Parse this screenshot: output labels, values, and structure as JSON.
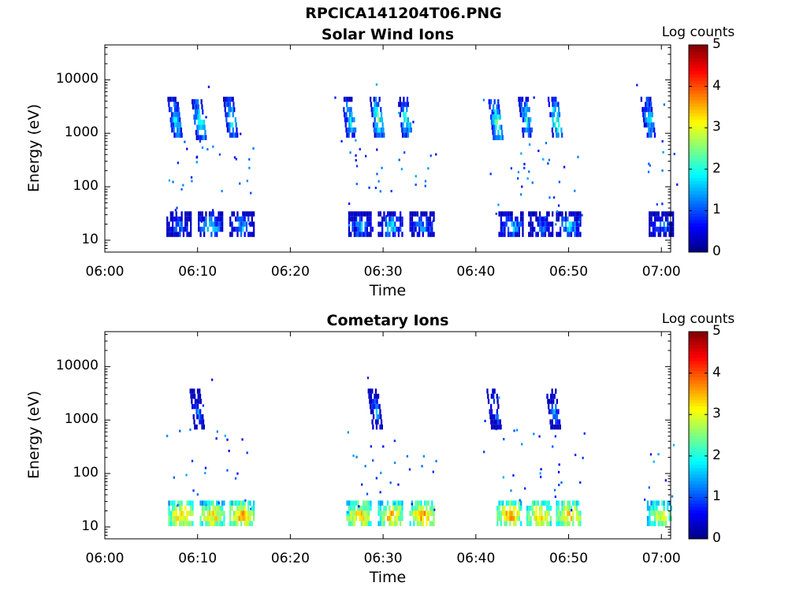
{
  "page": {
    "title": "RPCICA141204T06.PNG"
  },
  "chart_data": [
    {
      "type": "heatmap",
      "title": "Solar Wind Ions",
      "xlabel": "Time",
      "ylabel": "Energy (eV)",
      "x_ticks": [
        "06:00",
        "06:10",
        "06:20",
        "06:30",
        "06:40",
        "06:50",
        "07:00"
      ],
      "y_ticks": [
        "10",
        "100",
        "1000",
        "10000"
      ],
      "y_scale": "log",
      "ylim": [
        6,
        45000
      ],
      "xlim_minutes": [
        0,
        61
      ],
      "colorbar": {
        "label": "Log counts",
        "ticks": [
          "0",
          "1",
          "2",
          "3",
          "4",
          "5"
        ],
        "range": [
          0,
          5
        ],
        "colormap": "jet"
      },
      "grid": false,
      "clusters": [
        {
          "t": 7.6,
          "e": 2000,
          "v": 2.0
        },
        {
          "t": 10.2,
          "e": 1800,
          "v": 2.2
        },
        {
          "t": 13.6,
          "e": 2000,
          "v": 2.1
        },
        {
          "t": 26.4,
          "e": 2000,
          "v": 2.0
        },
        {
          "t": 29.4,
          "e": 2000,
          "v": 2.3
        },
        {
          "t": 32.4,
          "e": 2000,
          "v": 2.1
        },
        {
          "t": 42.2,
          "e": 1800,
          "v": 2.3
        },
        {
          "t": 45.4,
          "e": 2000,
          "v": 2.1
        },
        {
          "t": 48.6,
          "e": 2000,
          "v": 2.3
        },
        {
          "t": 58.6,
          "e": 2000,
          "v": 2.0
        },
        {
          "t": 8.0,
          "e": 20,
          "v": 1.4
        },
        {
          "t": 11.4,
          "e": 20,
          "v": 1.8
        },
        {
          "t": 14.8,
          "e": 20,
          "v": 1.6
        },
        {
          "t": 27.6,
          "e": 20,
          "v": 1.6
        },
        {
          "t": 30.8,
          "e": 20,
          "v": 1.8
        },
        {
          "t": 34.2,
          "e": 20,
          "v": 1.5
        },
        {
          "t": 43.8,
          "e": 20,
          "v": 1.7
        },
        {
          "t": 47.0,
          "e": 20,
          "v": 1.4
        },
        {
          "t": 50.0,
          "e": 20,
          "v": 1.7
        },
        {
          "t": 60.0,
          "e": 20,
          "v": 1.4
        }
      ]
    },
    {
      "type": "heatmap",
      "title": "Cometary Ions",
      "xlabel": "Time",
      "ylabel": "Energy (eV)",
      "x_ticks": [
        "06:00",
        "06:10",
        "06:20",
        "06:30",
        "06:40",
        "06:50",
        "07:00"
      ],
      "y_ticks": [
        "10",
        "100",
        "1000",
        "10000"
      ],
      "y_scale": "log",
      "ylim": [
        6,
        45000
      ],
      "xlim_minutes": [
        0,
        61
      ],
      "colorbar": {
        "label": "Log counts",
        "ticks": [
          "0",
          "1",
          "2",
          "3",
          "4",
          "5"
        ],
        "range": [
          0,
          5
        ],
        "colormap": "jet"
      },
      "grid": false,
      "clusters": [
        {
          "t": 8.2,
          "e": 18,
          "v": 3.6
        },
        {
          "t": 11.6,
          "e": 18,
          "v": 3.5
        },
        {
          "t": 14.8,
          "e": 18,
          "v": 3.7
        },
        {
          "t": 27.4,
          "e": 18,
          "v": 3.6
        },
        {
          "t": 30.8,
          "e": 18,
          "v": 3.6
        },
        {
          "t": 34.2,
          "e": 18,
          "v": 3.7
        },
        {
          "t": 43.6,
          "e": 18,
          "v": 3.7
        },
        {
          "t": 46.8,
          "e": 18,
          "v": 3.6
        },
        {
          "t": 50.0,
          "e": 18,
          "v": 3.6
        },
        {
          "t": 59.8,
          "e": 18,
          "v": 3.3
        },
        {
          "t": 10.0,
          "e": 1600,
          "v": 1.2
        },
        {
          "t": 29.2,
          "e": 1600,
          "v": 1.4
        },
        {
          "t": 42.0,
          "e": 1600,
          "v": 1.4
        },
        {
          "t": 48.4,
          "e": 1600,
          "v": 1.4
        }
      ]
    }
  ]
}
